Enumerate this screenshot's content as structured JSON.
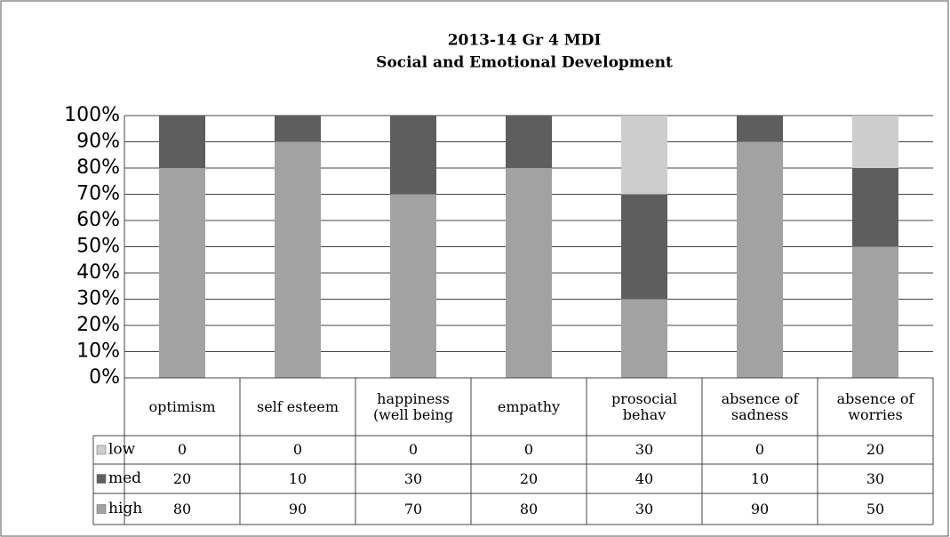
{
  "chart_data": {
    "type": "stacked_bar",
    "title": "2013-14 Gr 4 MDI",
    "subtitle": "Social and Emotional Development",
    "categories": [
      "optimism",
      "self esteem",
      "happiness (well being",
      "empathy",
      "prosocial behav",
      "absence of sadness",
      "absence of worries"
    ],
    "series": [
      {
        "name": "low",
        "color": "#cdcdcd",
        "values": [
          0,
          0,
          0,
          0,
          30,
          0,
          20
        ]
      },
      {
        "name": "med",
        "color": "#5e5e5e",
        "values": [
          20,
          10,
          30,
          20,
          40,
          10,
          30
        ]
      },
      {
        "name": "high",
        "color": "#a2a2a2",
        "values": [
          80,
          90,
          70,
          80,
          30,
          90,
          50
        ]
      }
    ],
    "ylim": [
      0,
      100
    ],
    "yticks": [
      {
        "value": 0,
        "label": "0%"
      },
      {
        "value": 10,
        "label": "10%"
      },
      {
        "value": 20,
        "label": "20%"
      },
      {
        "value": 30,
        "label": "30%"
      },
      {
        "value": 40,
        "label": "40%"
      },
      {
        "value": 50,
        "label": "50%"
      },
      {
        "value": 60,
        "label": "60%"
      },
      {
        "value": 70,
        "label": "70%"
      },
      {
        "value": 80,
        "label": "80%"
      },
      {
        "value": 90,
        "label": "90%"
      },
      {
        "value": 100,
        "label": "100%"
      }
    ],
    "grid": true
  }
}
